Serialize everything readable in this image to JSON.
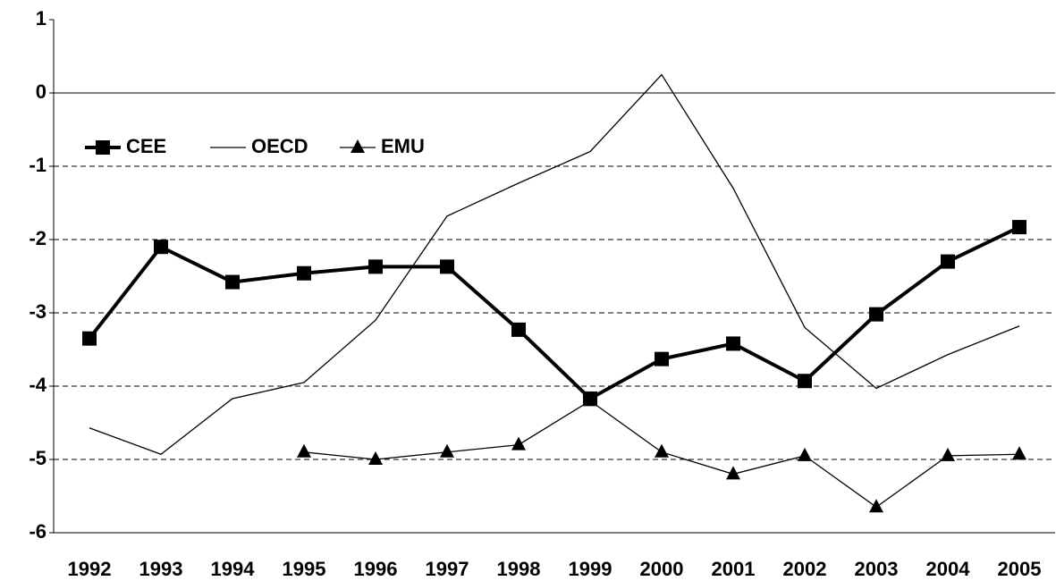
{
  "chart_data": {
    "type": "line",
    "categories": [
      "1992",
      "1993",
      "1994",
      "1995",
      "1996",
      "1997",
      "1998",
      "1999",
      "2000",
      "2001",
      "2002",
      "2003",
      "2004",
      "2005"
    ],
    "series": [
      {
        "name": "CEE",
        "color": "#000000",
        "line_width": 4,
        "marker": "square",
        "values": [
          -3.35,
          -2.1,
          -2.58,
          -2.46,
          -2.37,
          -2.37,
          -3.23,
          -4.17,
          -3.63,
          -3.42,
          -3.93,
          -3.02,
          -2.3,
          -1.83
        ]
      },
      {
        "name": "OECD",
        "color": "#000000",
        "line_width": 1.3,
        "marker": "none",
        "values": [
          -4.57,
          -4.93,
          -4.17,
          -3.95,
          -3.1,
          -1.68,
          -1.23,
          -0.8,
          0.25,
          -1.3,
          -3.2,
          -4.03,
          -3.57,
          -3.18
        ]
      },
      {
        "name": "EMU",
        "color": "#000000",
        "line_width": 1.3,
        "marker": "triangle",
        "values": [
          null,
          null,
          null,
          -4.9,
          -5.0,
          -4.9,
          -4.8,
          -4.2,
          -4.9,
          -5.2,
          -4.95,
          -5.65,
          -4.95,
          -4.93
        ]
      }
    ],
    "ylim": [
      -6,
      1
    ],
    "yticks": [
      1,
      0,
      -1,
      -2,
      -3,
      -4,
      -5,
      -6
    ],
    "grid": true,
    "legend": "top-left"
  }
}
